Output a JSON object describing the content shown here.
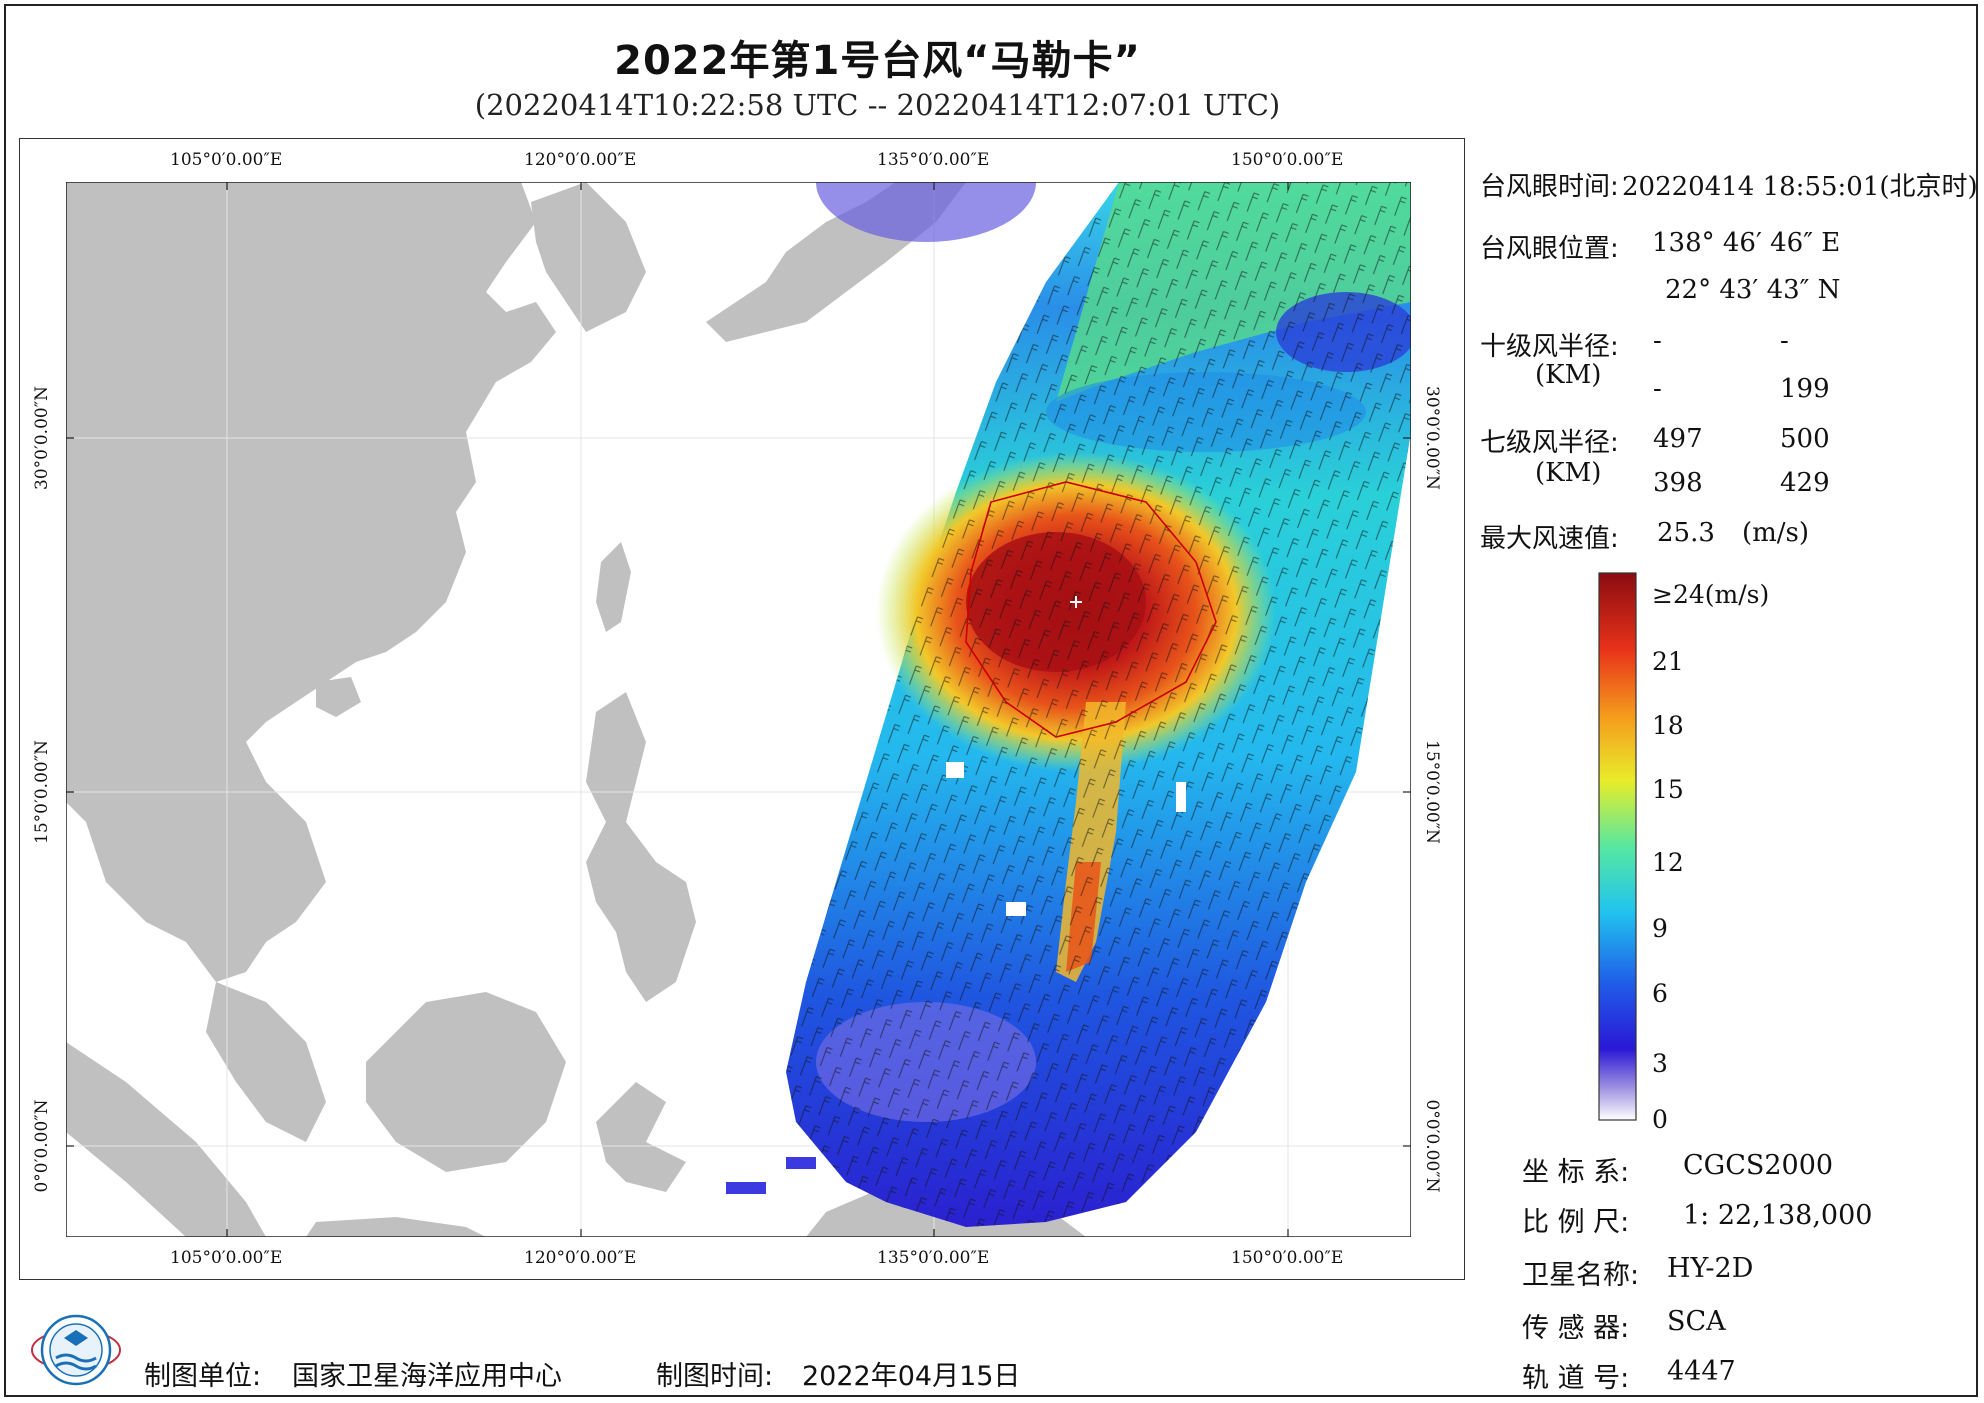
{
  "header": {
    "title": "2022年第1号台风“马勒卡”",
    "subtitle": "(20220414T10:22:58 UTC -- 20220414T12:07:01 UTC)"
  },
  "map": {
    "lon_ticks": [
      "105°0′0.00″E",
      "120°0′0.00″E",
      "135°0′0.00″E",
      "150°0′0.00″E"
    ],
    "lat_ticks": [
      "30°0′0.00″N",
      "15°0′0.00″N",
      "0°0′0.00″N"
    ],
    "colors": {
      "land": "#c0c0c0",
      "ocean": "#ffffff",
      "typhoon_circle": "#cc0000"
    }
  },
  "info": {
    "eye_time_label": "台风眼时间:",
    "eye_time_value": "20220414 18:55:01(北京时)",
    "eye_pos_label": "台风眼位置:",
    "eye_lon": "138° 46′ 46″ E",
    "eye_lat": "22° 43′ 43″ N",
    "r10_label": "十级风半径:",
    "r10_unit": "(KM)",
    "r10_values": [
      "-",
      "-",
      "-",
      "199"
    ],
    "r7_label": "七级风半径:",
    "r7_unit": "(KM)",
    "r7_values": [
      "497",
      "500",
      "398",
      "429"
    ],
    "maxwind_label": "最大风速值:",
    "maxwind_value": "25.3",
    "maxwind_unit": "(m/s)"
  },
  "colorbar": {
    "labels": [
      "≥24(m/s)",
      "21",
      "18",
      "15",
      "12",
      "9",
      "6",
      "3",
      "0"
    ],
    "stops": [
      "#ffffff",
      "#9c8fe0",
      "#2a18d6",
      "#1f5de8",
      "#21c3ef",
      "#57e8a0",
      "#e8ec2a",
      "#f59a1c",
      "#e8321a",
      "#8a0c10"
    ]
  },
  "metadata": {
    "crs_label": "坐 标 系:",
    "crs_value": "CGCS2000",
    "scale_label": "比 例 尺:",
    "scale_value": "1: 22,138,000",
    "satellite_label": "卫星名称:",
    "satellite_value": "HY-2D",
    "sensor_label": "传 感 器:",
    "sensor_value": "SCA",
    "orbit_label": "轨 道 号:",
    "orbit_value": "4447"
  },
  "footer": {
    "unit_label": "制图单位:",
    "unit_value": "国家卫星海洋应用中心",
    "time_label": "制图时间:",
    "time_value": "2022年04月15日"
  }
}
